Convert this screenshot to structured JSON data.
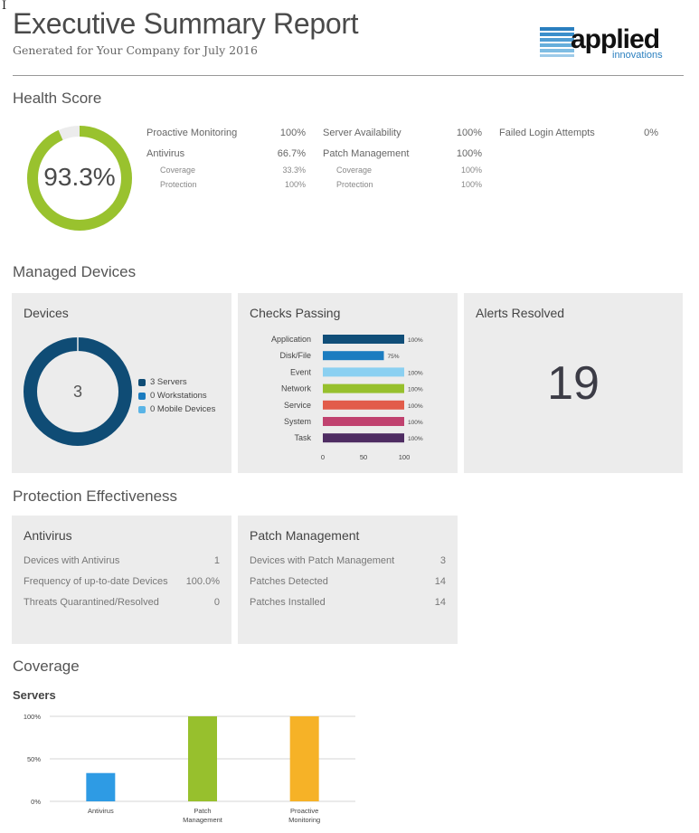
{
  "header": {
    "title": "Executive Summary Report",
    "subtitle": "Generated for Your Company for July 2016",
    "logo_text_main": "applied",
    "logo_text_sub": "innovations"
  },
  "health": {
    "section_title": "Health Score",
    "score_label": "93.3%",
    "score_fraction": 0.933,
    "colors": {
      "ring": "#99c22e",
      "track": "#ececec"
    },
    "metrics": [
      {
        "label": "Proactive Monitoring",
        "value": "100%"
      },
      {
        "label": "Antivirus",
        "value": "66.7%"
      },
      {
        "label": "Coverage",
        "value": "33.3%"
      },
      {
        "label": "Protection",
        "value": "100%"
      },
      {
        "label": "Server Availability",
        "value": "100%"
      },
      {
        "label": "Patch Management",
        "value": "100%"
      },
      {
        "label": "Coverage",
        "value": "100%"
      },
      {
        "label": "Protection",
        "value": "100%"
      },
      {
        "label": "Failed Login Attempts",
        "value": "0%"
      }
    ]
  },
  "managed": {
    "section_title": "Managed Devices",
    "devices": {
      "title": "Devices",
      "total": "3",
      "legend": [
        {
          "label": "3 Servers",
          "color": "#0f4c75"
        },
        {
          "label": "0 Workstations",
          "color": "#1a7bbf"
        },
        {
          "label": "0 Mobile Devices",
          "color": "#5ab4e6"
        }
      ]
    },
    "checks": {
      "title": "Checks Passing"
    },
    "alerts": {
      "title": "Alerts Resolved",
      "value": "19"
    }
  },
  "chart_data": [
    {
      "type": "bar",
      "orientation": "horizontal",
      "title": "Checks Passing",
      "categories": [
        "Application",
        "Disk/File",
        "Event",
        "Network",
        "Service",
        "System",
        "Task"
      ],
      "values": [
        100,
        75,
        100,
        100,
        100,
        100,
        100
      ],
      "value_labels": [
        "100%",
        "75%",
        "100%",
        "100%",
        "100%",
        "100%",
        "100%"
      ],
      "colors": [
        "#104e78",
        "#1b7cc0",
        "#8bd0f1",
        "#97c02d",
        "#e25c4a",
        "#c0426f",
        "#4e2c62"
      ],
      "xlim": [
        0,
        100
      ],
      "xticks": [
        "0",
        "50",
        "100"
      ]
    },
    {
      "type": "bar",
      "title": "Servers",
      "categories": [
        "Antivirus",
        "Patch Management",
        "Proactive Monitoring"
      ],
      "values": [
        33.3,
        100,
        100
      ],
      "colors": [
        "#2e9be4",
        "#97c02d",
        "#f6b227"
      ],
      "ylim": [
        0,
        100
      ],
      "yticks": [
        "0%",
        "50%",
        "100%"
      ],
      "grid": true
    }
  ],
  "protection": {
    "section_title": "Protection Effectiveness",
    "antivirus": {
      "title": "Antivirus",
      "rows": [
        {
          "label": "Devices with Antivirus",
          "value": "1"
        },
        {
          "label": "Frequency of up-to-date Devices",
          "value": "100.0%"
        },
        {
          "label": "Threats Quarantined/Resolved",
          "value": "0"
        }
      ]
    },
    "patch": {
      "title": "Patch Management",
      "rows": [
        {
          "label": "Devices with Patch Management",
          "value": "3"
        },
        {
          "label": "Patches Detected",
          "value": "14"
        },
        {
          "label": "Patches Installed",
          "value": "14"
        }
      ]
    }
  },
  "coverage": {
    "section_title": "Coverage",
    "servers_title": "Servers"
  }
}
